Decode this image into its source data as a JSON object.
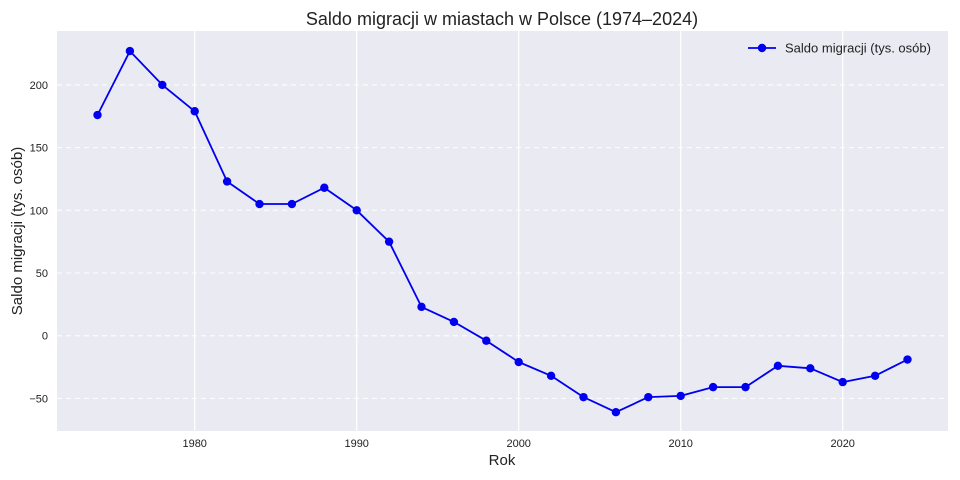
{
  "chart_data": {
    "type": "line",
    "title": "Saldo migracji w miastach w Polsce (1974–2024)",
    "xlabel": "Rok",
    "ylabel": "Saldo migracji (tys. osób)",
    "xlim": [
      1971.5,
      2026.5
    ],
    "ylim": [
      -76,
      243
    ],
    "x_ticks": [
      1980,
      1990,
      2000,
      2010,
      2020
    ],
    "y_ticks": [
      -50,
      0,
      50,
      100,
      150,
      200
    ],
    "y_tick_labels": [
      "−50",
      "0",
      "50",
      "100",
      "150",
      "200"
    ],
    "grid": true,
    "legend_position": "top-right",
    "series": [
      {
        "name": "Saldo migracji (tys. osób)",
        "color": "#0000ee",
        "x": [
          1974,
          1976,
          1978,
          1980,
          1982,
          1984,
          1986,
          1988,
          1990,
          1992,
          1994,
          1996,
          1998,
          2000,
          2002,
          2004,
          2006,
          2008,
          2010,
          2012,
          2014,
          2016,
          2018,
          2020,
          2022,
          2024
        ],
        "values": [
          176,
          227,
          200,
          179,
          123,
          105,
          105,
          118,
          100,
          75,
          23,
          11,
          -4,
          -21,
          -32,
          -49,
          -61,
          -49,
          -48,
          -41,
          -41,
          -24,
          -26,
          -37,
          -32,
          -19
        ]
      }
    ]
  }
}
